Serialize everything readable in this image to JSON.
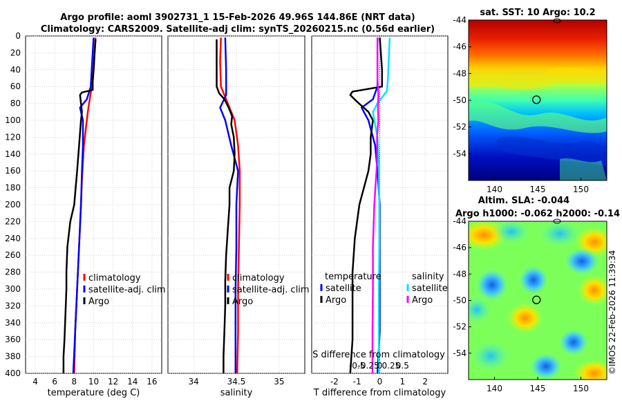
{
  "title_line1": "Argo profile: aoml 3902731_1 15-Feb-2026 49.96S 144.86E (NRT data)",
  "title_line2": "Climatology: CARS2009. Satellite-adj clim: synTS_20260215.nc (0.56d earlier)",
  "copyright": "©IMOS 22-Feb-2026 11:39:34",
  "colors": {
    "red": "#ff0000",
    "blue": "#0000ff",
    "black": "#000000",
    "cyan": "#00e5ff",
    "magenta": "#ff00ff"
  },
  "chart_data": [
    {
      "type": "line",
      "name": "temperature-panel",
      "xlabel": "temperature (deg C)",
      "ylabel": "",
      "xlim": [
        3,
        17
      ],
      "ylim": [
        0,
        400
      ],
      "xticks": [
        "4",
        "6",
        "8",
        "10",
        "12",
        "14",
        "16"
      ],
      "yticks": [
        "0",
        "20",
        "40",
        "60",
        "80",
        "100",
        "120",
        "140",
        "160",
        "180",
        "200",
        "220",
        "240",
        "260",
        "280",
        "300",
        "320",
        "340",
        "360",
        "380",
        "400"
      ],
      "legend": [
        "climatology",
        "satellite-adj. clim",
        "Argo"
      ],
      "series": [
        {
          "name": "climatology",
          "color": "red",
          "depth": [
            2,
            20,
            40,
            60,
            75,
            90,
            110,
            130,
            150,
            170,
            200,
            250,
            300,
            350,
            400
          ],
          "values": [
            10.2,
            10.1,
            10.0,
            9.8,
            9.6,
            9.4,
            9.2,
            9.0,
            8.9,
            8.8,
            8.7,
            8.5,
            8.3,
            8.1,
            8.0
          ]
        },
        {
          "name": "satellite-adj. clim",
          "color": "blue",
          "depth": [
            2,
            20,
            40,
            60,
            75,
            85,
            100,
            130,
            160,
            200,
            250,
            300,
            350,
            400
          ],
          "values": [
            10.0,
            9.9,
            9.8,
            9.7,
            9.3,
            8.6,
            8.9,
            8.9,
            8.8,
            8.7,
            8.5,
            8.3,
            8.1,
            7.9
          ]
        },
        {
          "name": "Argo",
          "color": "black",
          "depth": [
            4,
            20,
            40,
            55,
            64,
            67,
            70,
            80,
            90,
            100,
            130,
            160,
            200,
            220,
            250,
            280,
            300,
            330,
            360,
            380,
            400
          ],
          "values": [
            10.2,
            10.1,
            10.0,
            9.9,
            9.9,
            8.8,
            8.6,
            8.7,
            8.8,
            8.7,
            8.5,
            8.3,
            8.0,
            7.6,
            7.3,
            7.2,
            7.2,
            7.1,
            7.0,
            6.9,
            6.9
          ]
        }
      ]
    },
    {
      "type": "line",
      "name": "salinity-panel",
      "xlabel": "salinity",
      "ylabel": "",
      "xlim": [
        33.7,
        35.3
      ],
      "ylim": [
        0,
        400
      ],
      "xticks": [
        "34",
        "34.5",
        "35"
      ],
      "legend": [
        "climatology",
        "satellite-adj. clim",
        "Argo"
      ],
      "series": [
        {
          "name": "climatology",
          "color": "red",
          "depth": [
            2,
            30,
            60,
            80,
            100,
            130,
            160,
            200,
            250,
            300,
            350,
            400
          ],
          "values": [
            34.32,
            34.31,
            34.32,
            34.4,
            34.48,
            34.52,
            34.54,
            34.54,
            34.53,
            34.52,
            34.52,
            34.51
          ],
          "linewidth": 2.5
        },
        {
          "name": "satellite-adj. clim",
          "color": "blue",
          "depth": [
            2,
            40,
            70,
            85,
            100,
            130,
            160,
            200,
            250,
            300,
            350,
            400
          ],
          "values": [
            34.37,
            34.38,
            34.38,
            34.31,
            34.37,
            34.44,
            34.52,
            34.5,
            34.5,
            34.49,
            34.49,
            34.49
          ]
        },
        {
          "name": "Argo",
          "color": "black",
          "depth": [
            4,
            30,
            60,
            68,
            75,
            85,
            95,
            105,
            120,
            140,
            160,
            180,
            200,
            230,
            260,
            290,
            320,
            350,
            380,
            400
          ],
          "values": [
            34.27,
            34.27,
            34.27,
            34.3,
            34.36,
            34.41,
            34.45,
            34.44,
            34.47,
            34.48,
            34.47,
            34.42,
            34.42,
            34.4,
            34.38,
            34.37,
            34.37,
            34.36,
            34.35,
            34.35
          ]
        }
      ]
    },
    {
      "type": "line",
      "name": "difference-panel",
      "xlabel": "T difference from climatology",
      "top_xlabel": "S difference from climatology",
      "xlim": [
        -3,
        3
      ],
      "ylim": [
        0,
        400
      ],
      "xticks": [
        "-2",
        "-1",
        "0",
        "1",
        "2"
      ],
      "top_ticks": [
        "-0.5",
        "-0.25",
        "0",
        "0.25",
        "0.5"
      ],
      "legend_titles": [
        "temperature",
        "salinity"
      ],
      "legend": [
        "satellite",
        "Argo",
        "satellite",
        "Argo"
      ],
      "series": [
        {
          "name": "temperature satellite",
          "color": "blue",
          "depth": [
            2,
            40,
            60,
            75,
            85,
            100,
            130,
            160,
            200,
            250,
            300,
            350,
            400
          ],
          "values": [
            -0.1,
            -0.1,
            -0.1,
            -0.3,
            -0.8,
            -0.5,
            -0.2,
            -0.1,
            0,
            0,
            0,
            0,
            -0.1
          ]
        },
        {
          "name": "temperature Argo",
          "color": "black",
          "depth": [
            2,
            40,
            60,
            66,
            70,
            78,
            90,
            100,
            120,
            140,
            160,
            200,
            240,
            280,
            320,
            360,
            400
          ],
          "values": [
            0,
            0.1,
            0.1,
            -1.2,
            -1.3,
            -1.0,
            -0.5,
            -0.3,
            -0.4,
            -0.4,
            -0.5,
            -0.9,
            -1.1,
            -1.2,
            -1.2,
            -1.2,
            -1.3
          ]
        },
        {
          "name": "salinity satellite",
          "color": "cyan",
          "depth": [
            2,
            50,
            65,
            80,
            90,
            100,
            120,
            150,
            200,
            250,
            300,
            350,
            400
          ],
          "values": [
            0.22,
            0.18,
            0.16,
            -0.05,
            -0.15,
            -0.12,
            -0.05,
            -0.02,
            -0.01,
            -0.01,
            -0.02,
            -0.02,
            -0.02
          ]
        },
        {
          "name": "salinity Argo",
          "color": "magenta",
          "depth": [
            2,
            50,
            70,
            85,
            100,
            120,
            150,
            200,
            250,
            300,
            350,
            400
          ],
          "values": [
            -0.05,
            -0.05,
            -0.03,
            -0.04,
            -0.03,
            -0.06,
            -0.06,
            -0.12,
            -0.15,
            -0.15,
            -0.16,
            -0.16
          ]
        }
      ]
    },
    {
      "type": "heatmap",
      "name": "sst-map",
      "title": "sat. SST: 10 Argo: 10.2",
      "xticks": [
        "140",
        "145",
        "150"
      ],
      "yticks": [
        "-44",
        "-46",
        "-48",
        "-50",
        "-52",
        "-54"
      ],
      "xlim": [
        137,
        153
      ],
      "ylim": [
        -56,
        -44
      ],
      "marker": {
        "lon": 144.86,
        "lat": -49.96
      }
    },
    {
      "type": "heatmap",
      "name": "sla-map",
      "title_line1": "Altim. SLA: -0.044",
      "title_line2": "Argo h1000: -0.062 h2000: -0.14",
      "xticks": [
        "140",
        "145",
        "150"
      ],
      "yticks": [
        "-44",
        "-46",
        "-48",
        "-50",
        "-52",
        "-54"
      ],
      "xlim": [
        137,
        153
      ],
      "ylim": [
        -56,
        -44
      ],
      "marker": {
        "lon": 144.86,
        "lat": -49.96
      }
    }
  ]
}
